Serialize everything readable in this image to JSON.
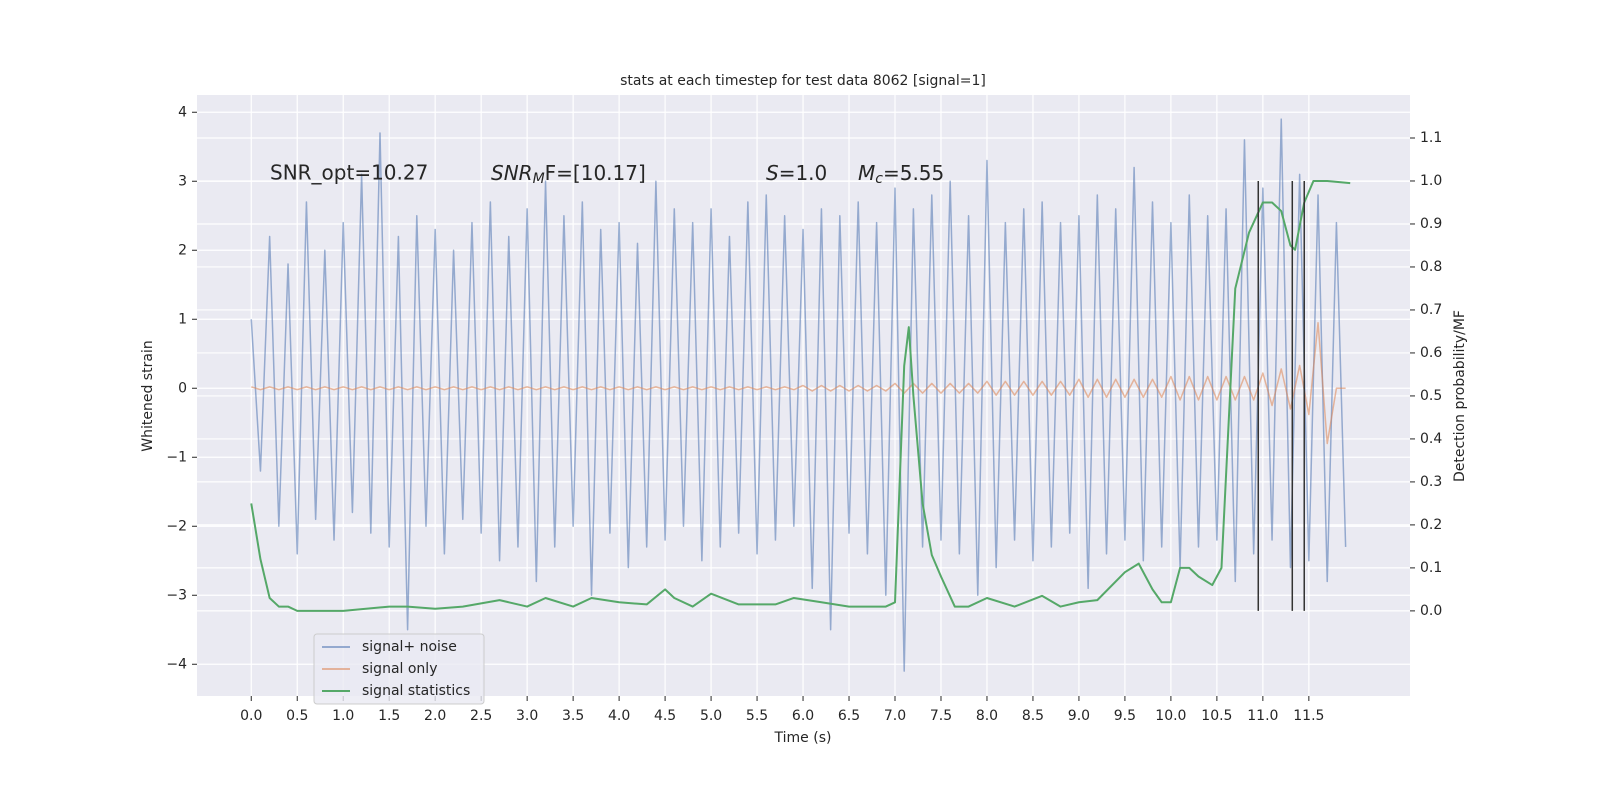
{
  "chart_data": {
    "type": "line",
    "title": "stats at each timestep for test data 8062 [signal=1]",
    "xlabel": "Time (s)",
    "ylabel": "Whitened strain",
    "y2label": "Detection probability/MF",
    "annotations": {
      "opt": "SNR_opt=10.27",
      "mf": {
        "base": "SNR",
        "sub": "M",
        "tail": "F=[10.17]"
      },
      "s": {
        "base": "S",
        "tail": "=1.0"
      },
      "mc": {
        "base": "M",
        "sub": "c",
        "tail": "=5.55"
      }
    },
    "xlim": [
      -0.59,
      12.6
    ],
    "ylim": [
      -4.46,
      4.25
    ],
    "y2lim": [
      -0.198,
      1.2
    ],
    "xticks": [
      {
        "value": 0,
        "label": "0.0"
      },
      0.5,
      {
        "value": 1,
        "label": "1.0"
      },
      1.5,
      {
        "value": 2,
        "label": "2.0"
      },
      2.5,
      {
        "value": 3,
        "label": "3.0"
      },
      3.5,
      {
        "value": 4,
        "label": "4.0"
      },
      4.5,
      {
        "value": 5,
        "label": "5.0"
      },
      5.5,
      {
        "value": 6,
        "label": "6.0"
      },
      6.5,
      {
        "value": 7,
        "label": "7.0"
      },
      7.5,
      {
        "value": 8,
        "label": "8.0"
      },
      8.5,
      {
        "value": 9,
        "label": "9.0"
      },
      9.5,
      {
        "value": 10,
        "label": "10.0"
      },
      10.5,
      {
        "value": 11,
        "label": "11.0"
      },
      11.5
    ],
    "yticks": [
      {
        "value": -4,
        "label": "−4"
      },
      {
        "value": -3,
        "label": "−3"
      },
      {
        "value": -2,
        "label": "−2"
      },
      {
        "value": -1,
        "label": "−1"
      },
      0,
      1,
      2,
      3,
      4
    ],
    "y2ticks": [
      {
        "value": 0,
        "label": "0.0"
      },
      0.1,
      0.2,
      0.3,
      0.4,
      0.5,
      0.6,
      0.7,
      0.8,
      0.9,
      {
        "value": 1,
        "label": "1.0"
      },
      1.1
    ],
    "grid": true,
    "legend": "lower left",
    "x": [
      0,
      0.1,
      0.2,
      0.3,
      0.4,
      0.5,
      0.6,
      0.7,
      0.8,
      0.9,
      1,
      1.1,
      1.2,
      1.3,
      1.4,
      1.5,
      1.6,
      1.7,
      1.8,
      1.9,
      2,
      2.1,
      2.2,
      2.3,
      2.4,
      2.5,
      2.6,
      2.7,
      2.8,
      2.9,
      3,
      3.1,
      3.2,
      3.3,
      3.4,
      3.5,
      3.6,
      3.7,
      3.8,
      3.9,
      4,
      4.1,
      4.2,
      4.3,
      4.4,
      4.5,
      4.6,
      4.7,
      4.8,
      4.9,
      5,
      5.1,
      5.2,
      5.3,
      5.4,
      5.5,
      5.6,
      5.7,
      5.8,
      5.9,
      6,
      6.1,
      6.2,
      6.3,
      6.4,
      6.5,
      6.6,
      6.7,
      6.8,
      6.9,
      7,
      7.1,
      7.2,
      7.3,
      7.4,
      7.5,
      7.6,
      7.7,
      7.8,
      7.9,
      8,
      8.1,
      8.2,
      8.3,
      8.4,
      8.5,
      8.6,
      8.7,
      8.8,
      8.9,
      9,
      9.1,
      9.2,
      9.3,
      9.4,
      9.5,
      9.6,
      9.7,
      9.8,
      9.9,
      10,
      10.1,
      10.2,
      10.3,
      10.4,
      10.5,
      10.6,
      10.7,
      10.8,
      10.9,
      11,
      11.1,
      11.2,
      11.3,
      11.4,
      11.5,
      11.6,
      11.7,
      11.8,
      11.9
    ],
    "series": [
      {
        "name": "signal+ noise",
        "color": "#4c72b0",
        "values": [
          1.0,
          -1.2,
          2.2,
          -2.0,
          1.8,
          -2.4,
          2.7,
          -1.9,
          2.0,
          -2.2,
          2.4,
          -1.8,
          3.1,
          -2.1,
          3.7,
          -2.3,
          2.2,
          -3.5,
          2.5,
          -2.0,
          2.3,
          -2.4,
          2.0,
          -1.9,
          2.4,
          -2.1,
          2.7,
          -2.5,
          2.2,
          -2.3,
          2.6,
          -2.8,
          3.0,
          -2.3,
          2.5,
          -2.0,
          2.7,
          -3.0,
          2.3,
          -2.1,
          2.4,
          -2.6,
          2.1,
          -2.3,
          3.0,
          -2.2,
          2.6,
          -2.0,
          2.4,
          -2.5,
          2.6,
          -2.3,
          2.2,
          -2.1,
          2.7,
          -2.4,
          2.8,
          -2.2,
          2.5,
          -2.0,
          2.3,
          -2.9,
          2.6,
          -3.5,
          2.5,
          -2.1,
          2.7,
          -2.4,
          2.4,
          -3.0,
          2.9,
          -4.1,
          2.6,
          -2.3,
          2.8,
          -2.2,
          3.0,
          -2.4,
          2.5,
          -3.0,
          3.3,
          -2.6,
          2.4,
          -2.2,
          2.6,
          -2.5,
          2.7,
          -2.3,
          2.4,
          -2.1,
          2.5,
          -2.9,
          2.8,
          -2.4,
          2.6,
          -2.2,
          3.2,
          -2.5,
          2.7,
          -2.3,
          2.4,
          -2.6,
          2.8,
          -2.3,
          2.5,
          -2.2,
          2.6,
          -2.8,
          3.6,
          -2.4,
          2.9,
          -2.2,
          3.9,
          -2.6,
          3.1,
          -2.5,
          2.8,
          -2.8,
          2.4,
          -2.3
        ]
      },
      {
        "name": "signal only",
        "color": "#dd8452",
        "values": [
          0.02,
          -0.02,
          0.02,
          -0.02,
          0.02,
          -0.02,
          0.02,
          -0.02,
          0.02,
          -0.02,
          0.02,
          -0.02,
          0.02,
          -0.02,
          0.02,
          -0.02,
          0.02,
          -0.02,
          0.02,
          -0.02,
          0.02,
          -0.02,
          0.02,
          -0.02,
          0.02,
          -0.02,
          0.02,
          -0.02,
          0.02,
          -0.02,
          0.02,
          -0.02,
          0.02,
          -0.02,
          0.02,
          -0.02,
          0.02,
          -0.02,
          0.02,
          -0.02,
          0.02,
          -0.02,
          0.02,
          -0.02,
          0.02,
          -0.02,
          0.02,
          -0.02,
          0.02,
          -0.02,
          0.02,
          -0.02,
          0.02,
          -0.02,
          0.02,
          -0.02,
          0.02,
          -0.02,
          0.02,
          -0.02,
          0.04,
          -0.04,
          0.04,
          -0.04,
          0.04,
          -0.04,
          0.04,
          -0.04,
          0.04,
          -0.04,
          0.07,
          -0.07,
          0.07,
          -0.07,
          0.07,
          -0.07,
          0.07,
          -0.07,
          0.07,
          -0.07,
          0.1,
          -0.1,
          0.1,
          -0.1,
          0.1,
          -0.1,
          0.1,
          -0.1,
          0.1,
          -0.1,
          0.13,
          -0.13,
          0.13,
          -0.13,
          0.13,
          -0.13,
          0.13,
          -0.13,
          0.13,
          -0.13,
          0.17,
          -0.17,
          0.17,
          -0.17,
          0.17,
          -0.17,
          0.17,
          -0.17,
          0.17,
          -0.17,
          0.22,
          -0.25,
          0.28,
          -0.3,
          0.33,
          -0.38,
          0.95,
          -0.8,
          0,
          0
        ]
      },
      {
        "name": "signal statistics",
        "color": "#55a868",
        "axis": "y2",
        "x": [
          0,
          0.1,
          0.2,
          0.3,
          0.4,
          0.5,
          0.7,
          1.0,
          1.5,
          1.7,
          2.0,
          2.3,
          2.7,
          3.0,
          3.2,
          3.5,
          3.7,
          4.0,
          4.3,
          4.5,
          4.6,
          4.8,
          5.0,
          5.3,
          5.7,
          5.9,
          6.2,
          6.5,
          6.9,
          7.0,
          7.1,
          7.15,
          7.2,
          7.3,
          7.4,
          7.5,
          7.65,
          7.8,
          8.0,
          8.3,
          8.6,
          8.8,
          9.0,
          9.2,
          9.5,
          9.65,
          9.8,
          9.9,
          10.0,
          10.1,
          10.2,
          10.3,
          10.45,
          10.55,
          10.7,
          10.85,
          11.0,
          11.1,
          11.2,
          11.3,
          11.35,
          11.45,
          11.55,
          11.6,
          11.7,
          11.95
        ],
        "values": [
          0.25,
          0.12,
          0.03,
          0.01,
          0.01,
          0.0,
          0.0,
          0.0,
          0.01,
          0.01,
          0.005,
          0.01,
          0.025,
          0.01,
          0.03,
          0.01,
          0.03,
          0.02,
          0.015,
          0.05,
          0.03,
          0.01,
          0.04,
          0.015,
          0.015,
          0.03,
          0.02,
          0.01,
          0.01,
          0.02,
          0.57,
          0.66,
          0.5,
          0.25,
          0.13,
          0.08,
          0.01,
          0.01,
          0.03,
          0.01,
          0.035,
          0.01,
          0.02,
          0.025,
          0.09,
          0.11,
          0.05,
          0.02,
          0.02,
          0.1,
          0.1,
          0.08,
          0.06,
          0.1,
          0.75,
          0.88,
          0.95,
          0.95,
          0.93,
          0.85,
          0.84,
          0.95,
          1.0,
          1.0,
          1.0,
          0.995
        ]
      }
    ],
    "vlines": {
      "color": "#333333",
      "x": [
        10.95,
        11.32,
        11.45
      ],
      "ymin": 0,
      "ymax": 1
    }
  }
}
